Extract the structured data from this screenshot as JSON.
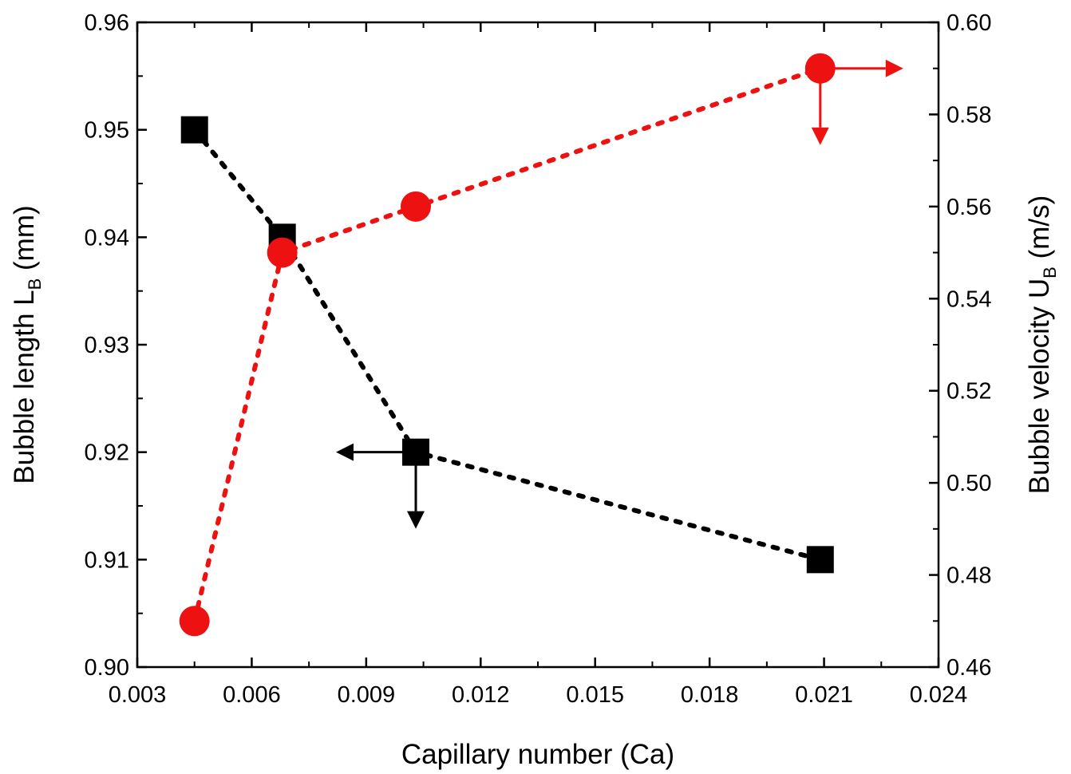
{
  "chart_data": {
    "type": "scatter",
    "xlabel": "Capillary number (Ca)",
    "ylabel_left": {
      "main": "Bubble length L",
      "subscript": "B",
      "unit": " (mm)"
    },
    "ylabel_right": {
      "main": "Bubble velocity U",
      "subscript": "B",
      "unit": " (m/s)"
    },
    "xlim": [
      0.003,
      0.024
    ],
    "ylim_left": [
      0.9,
      0.96
    ],
    "ylim_right": [
      0.46,
      0.6
    ],
    "x_ticks": [
      "0.003",
      "0.006",
      "0.009",
      "0.012",
      "0.015",
      "0.018",
      "0.021",
      "0.024"
    ],
    "y_left_ticks": [
      "0.90",
      "0.91",
      "0.92",
      "0.93",
      "0.94",
      "0.95",
      "0.96"
    ],
    "y_right_ticks": [
      "0.46",
      "0.48",
      "0.50",
      "0.52",
      "0.54",
      "0.56",
      "0.58",
      "0.60"
    ],
    "grid": false,
    "series": [
      {
        "name": "Bubble length",
        "axis": "left",
        "marker": "square",
        "color": "#000000",
        "line": "dotted",
        "x": [
          0.0045,
          0.0068,
          0.0103,
          0.0209
        ],
        "y": [
          0.95,
          0.94,
          0.92,
          0.91
        ],
        "axis_indicator": {
          "at": [
            0.0103,
            0.92
          ],
          "direction": "left"
        }
      },
      {
        "name": "Bubble velocity",
        "axis": "right",
        "marker": "circle",
        "color": "#ee1111",
        "line": "dotted",
        "x": [
          0.0045,
          0.0068,
          0.0103,
          0.0209
        ],
        "y": [
          0.47,
          0.55,
          0.56,
          0.59
        ],
        "axis_indicator": {
          "at": [
            0.0209,
            0.59
          ],
          "direction": "right"
        }
      }
    ]
  }
}
